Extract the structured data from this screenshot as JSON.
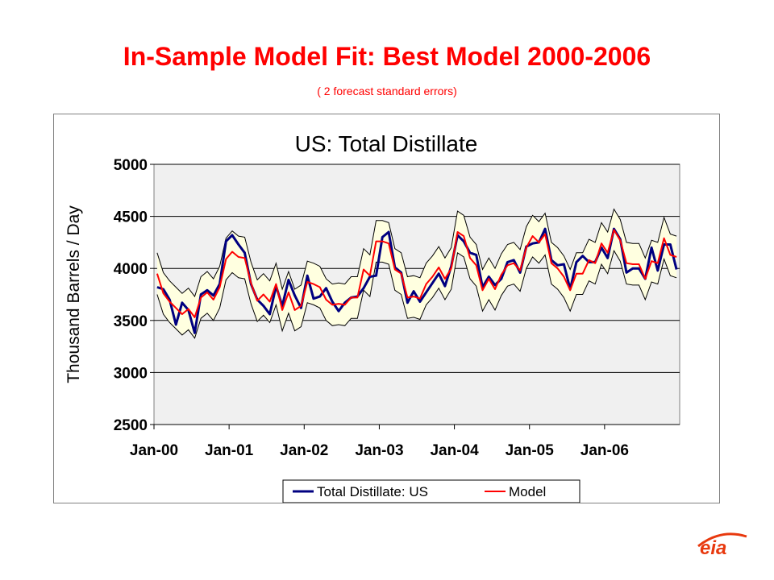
{
  "slide": {
    "title": "In-Sample Model Fit:  Best Model  2000-2006",
    "subtitle": "( 2 forecast standard errors)"
  },
  "logo": {
    "text": "eia",
    "color": "#e8390e"
  },
  "colors": {
    "title": "#ff0000",
    "actual_line": "#000080",
    "model_line": "#ff0000",
    "band_fill": "#ffffe0",
    "plot_bg": "#f0f0f0"
  },
  "chart_data": {
    "type": "line",
    "title": "US:  Total Distillate",
    "ylabel": "Thousand Barrels / Day",
    "xlabel": "",
    "ylim": [
      2500,
      5000
    ],
    "yticks": [
      2500,
      3000,
      3500,
      4000,
      4500,
      5000
    ],
    "xtick_labels": [
      "Jan-00",
      "Jan-01",
      "Jan-02",
      "Jan-03",
      "Jan-04",
      "Jan-05",
      "Jan-06"
    ],
    "x_start": "Jan-00",
    "n_months": 84,
    "grid": "horizontal",
    "legend_position": "bottom",
    "band": "model ± 2 forecast standard errors",
    "series": [
      {
        "name": "Total Distillate: US",
        "color": "#000080",
        "values": [
          3820,
          3800,
          3700,
          3460,
          3670,
          3600,
          3380,
          3750,
          3790,
          3740,
          3850,
          4260,
          4320,
          4230,
          4150,
          3850,
          3700,
          3640,
          3560,
          3830,
          3640,
          3890,
          3740,
          3620,
          3930,
          3710,
          3730,
          3810,
          3680,
          3590,
          3670,
          3720,
          3730,
          3810,
          3920,
          3930,
          4300,
          4350,
          4010,
          3960,
          3670,
          3780,
          3680,
          3770,
          3860,
          3950,
          3830,
          4020,
          4320,
          4260,
          4150,
          4130,
          3820,
          3920,
          3840,
          3900,
          4060,
          4080,
          3960,
          4210,
          4240,
          4250,
          4380,
          4080,
          4030,
          4040,
          3800,
          4060,
          4120,
          4060,
          4060,
          4200,
          4100,
          4380,
          4280,
          3960,
          4000,
          4000,
          3900,
          4200,
          3980,
          4230,
          4230,
          3990
        ]
      },
      {
        "name": "Model",
        "color": "#ff0000",
        "values": [
          3950,
          3760,
          3680,
          3620,
          3560,
          3610,
          3530,
          3720,
          3770,
          3700,
          3820,
          4090,
          4160,
          4110,
          4100,
          3860,
          3690,
          3750,
          3680,
          3850,
          3600,
          3770,
          3600,
          3640,
          3870,
          3850,
          3820,
          3700,
          3650,
          3660,
          3650,
          3720,
          3720,
          3990,
          3930,
          4260,
          4260,
          4240,
          3990,
          3950,
          3720,
          3730,
          3710,
          3850,
          3920,
          4010,
          3900,
          4000,
          4350,
          4310,
          4100,
          4030,
          3790,
          3900,
          3800,
          3940,
          4030,
          4050,
          3980,
          4200,
          4310,
          4250,
          4330,
          4050,
          4000,
          3920,
          3790,
          3950,
          3950,
          4080,
          4050,
          4240,
          4150,
          4370,
          4270,
          4050,
          4040,
          4040,
          3900,
          4070,
          4050,
          4290,
          4130,
          4110
        ]
      }
    ]
  },
  "legend": {
    "items": [
      {
        "label": "Total Distillate: US",
        "color": "#000080"
      },
      {
        "label": "Model",
        "color": "#ff0000"
      }
    ]
  }
}
